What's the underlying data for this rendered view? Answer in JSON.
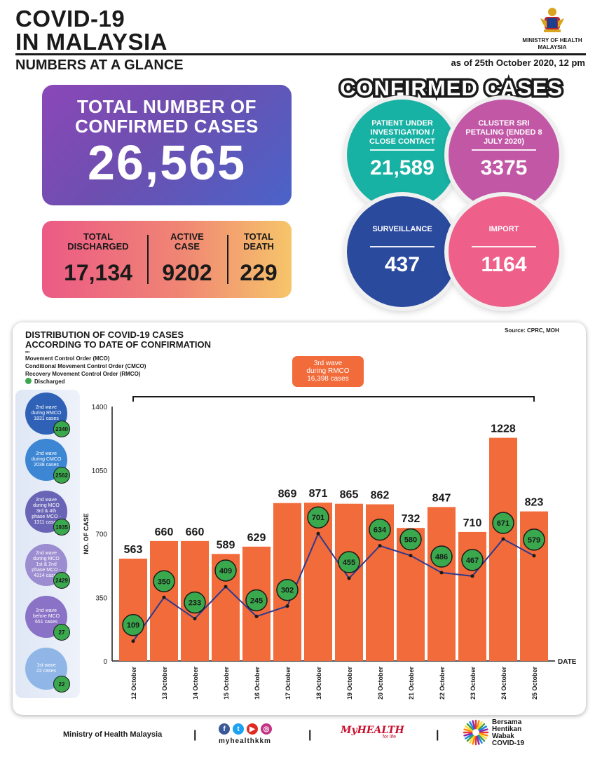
{
  "header": {
    "title_line1": "COVID-19",
    "title_line2": "IN MALAYSIA",
    "subtitle": "NUMBERS AT A GLANCE",
    "date": "as of 25th October 2020, 12 pm",
    "ministry_line1": "MINISTRY OF HEALTH",
    "ministry_line2": "MALAYSIA"
  },
  "totals": {
    "label_line1": "TOTAL NUMBER OF",
    "label_line2": "CONFIRMED CASES",
    "value": "26,565",
    "discharged_label_1": "TOTAL",
    "discharged_label_2": "DISCHARGED",
    "discharged_value": "17,134",
    "active_label_1": "ACTIVE",
    "active_label_2": "CASE",
    "active_value": "9202",
    "death_label_1": "TOTAL",
    "death_label_2": "DEATH",
    "death_value": "229"
  },
  "confirmed": {
    "title": "CONFIRMED CASES",
    "circles": [
      {
        "label": "PATIENT UNDER INVESTIGATION / CLOSE CONTACT",
        "value": "21,589",
        "color": "#18b2a4"
      },
      {
        "label": "CLUSTER SRI PETALING (ENDED 8 JULY 2020)",
        "value": "3375",
        "color": "#c257a6"
      },
      {
        "label": "SURVEILLANCE",
        "value": "437",
        "color": "#2a4a9e"
      },
      {
        "label": "IMPORT",
        "value": "1164",
        "color": "#ee5f8a"
      }
    ]
  },
  "chart_panel": {
    "title_line1": "DISTRIBUTION OF COVID-19 CASES",
    "title_line2": "ACCORDING TO DATE OF CONFIRMATION",
    "source": "Source: CPRC, MOH",
    "legend": [
      "Movement Control Order (MCO)",
      "Conditional Movement Control Order (CMCO)",
      "Recovery Movement Control Order (RMCO)"
    ],
    "legend_discharged": "Discharged",
    "third_wave": [
      "3rd wave",
      "during RMCO",
      "16,398 cases"
    ]
  },
  "waves": [
    {
      "lines": [
        "2nd wave",
        "during RMCO",
        "1831 cases"
      ],
      "discharged": "2340",
      "color": "#2f62b7"
    },
    {
      "lines": [
        "2nd wave",
        "during CMCO",
        "2038 cases"
      ],
      "discharged": "2562",
      "color": "#3d86d4"
    },
    {
      "lines": [
        "2nd wave",
        "during MCO",
        "3rd & 4th",
        "phase MCO -",
        "1311 cases"
      ],
      "discharged": "1935",
      "color": "#6a64b6"
    },
    {
      "lines": [
        "2nd wave",
        "during MCO",
        "1st & 2nd",
        "phase MCO -",
        "4314 cases"
      ],
      "discharged": "2429",
      "color": "#9c8cd0"
    },
    {
      "lines": [
        "2nd wave",
        "before MCO",
        "651 cases"
      ],
      "discharged": "27",
      "color": "#8a72c6"
    },
    {
      "lines": [
        "1st wave",
        "22 cases"
      ],
      "discharged": "22",
      "color": "#8fb6e6"
    }
  ],
  "chart_data": {
    "type": "bar",
    "categories": [
      "12 October",
      "13 October",
      "14 October",
      "15 October",
      "16 October",
      "17 October",
      "18 October",
      "19 October",
      "20 October",
      "21 October",
      "22 October",
      "23 October",
      "24 October",
      "25 October"
    ],
    "series": [
      {
        "values": [
          563,
          660,
          660,
          589,
          629,
          869,
          871,
          865,
          862,
          732,
          847,
          710,
          1228,
          823
        ],
        "color": "#f26b3a"
      },
      {
        "name": "Discharged",
        "type": "line",
        "values": [
          109,
          350,
          233,
          409,
          245,
          302,
          701,
          455,
          634,
          580,
          486,
          467,
          671,
          579
        ],
        "color": "#2d3a8c"
      }
    ],
    "ylabel": "NO. OF CASE",
    "xlabel": "DATE",
    "ylim": [
      0,
      1400
    ],
    "yticks": [
      0,
      350,
      700,
      1050,
      1400
    ]
  },
  "footer": {
    "ministry": "Ministry of Health Malaysia",
    "handle": "myhealthkkm",
    "myhealth": "MyHEALTH",
    "myhealth_tag": "for life",
    "campaign": [
      "Bersama",
      "Hentikan",
      "Wabak",
      "COVID-19"
    ],
    "social_icons": [
      "facebook-icon",
      "twitter-icon",
      "youtube-icon",
      "instagram-icon"
    ]
  }
}
